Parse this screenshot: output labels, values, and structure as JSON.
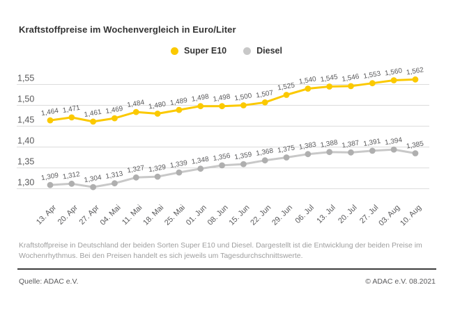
{
  "title": "Kraftstoffpreise im Wochenvergleich in Euro/Liter",
  "footnote": "Kraftstoffpreise in Deutschland der beiden Sorten Super E10 und Diesel. Dargestellt ist die Entwicklung der beiden Preise im Wochenrhythmus. Bei den Preisen handelt es sich jeweils um Tagesdurchschnittswerte.",
  "footer": {
    "source": "Quelle: ADAC e.V.",
    "copyright": "© ADAC e.V. 08.2021"
  },
  "colors": {
    "super_e10_yellow": "#FBC900",
    "diesel_line_gray": "#C8C8C8",
    "diesel_dot_gray": "#AFAFAF",
    "grid_gray": "#DCDCDC",
    "axis_text_gray": "#58585A",
    "data_label_gray": "#5A5A5C",
    "footnote_gray": "#9E9E9E",
    "divider_dark": "#3C3C3C",
    "title_dark": "#333333"
  },
  "chart_data": {
    "type": "line",
    "title": "Kraftstoffpreise im Wochenvergleich in Euro/Liter",
    "unit": "Euro/Liter",
    "grid": "horizontal",
    "legend_position": "top-center",
    "categories": [
      "13. Apr",
      "20. Apr",
      "27. Apr",
      "04. Mai",
      "11. Mai",
      "18. Mai",
      "25. Mai",
      "01. Jun",
      "08. Jun",
      "15. Jun",
      "22. Jun",
      "29. Jun",
      "06. Jul",
      "13. Jul",
      "20. Jul",
      "27. Jul",
      "03. Aug",
      "10. Aug"
    ],
    "series": [
      {
        "name": "Super E10",
        "color": "#FBC900",
        "dot_color": "#FBC900",
        "values": [
          1.464,
          1.471,
          1.461,
          1.469,
          1.484,
          1.48,
          1.489,
          1.498,
          1.498,
          1.5,
          1.507,
          1.525,
          1.54,
          1.545,
          1.546,
          1.553,
          1.56,
          1.562
        ],
        "labels": [
          "1,464",
          "1,471",
          "1,461",
          "1,469",
          "1,484",
          "1,480",
          "1,489",
          "1,498",
          "1,498",
          "1,500",
          "1,507",
          "1,525",
          "1,540",
          "1,545",
          "1,546",
          "1,553",
          "1,560",
          "1,562"
        ]
      },
      {
        "name": "Diesel",
        "color": "#C8C8C8",
        "dot_color": "#AFAFAF",
        "values": [
          1.309,
          1.312,
          1.304,
          1.313,
          1.327,
          1.329,
          1.339,
          1.348,
          1.356,
          1.359,
          1.368,
          1.375,
          1.383,
          1.388,
          1.387,
          1.391,
          1.394,
          1.385
        ],
        "labels": [
          "1,309",
          "1,312",
          "1,304",
          "1,313",
          "1,327",
          "1,329",
          "1,339",
          "1,348",
          "1,356",
          "1,359",
          "1,368",
          "1,375",
          "1,383",
          "1,388",
          "1,387",
          "1,391",
          "1,394",
          "1,385"
        ]
      }
    ],
    "y_axis": {
      "range": [
        1.28,
        1.58
      ],
      "ticks": [
        {
          "value": 1.55,
          "label": "1,55"
        },
        {
          "value": 1.5,
          "label": "1,50"
        },
        {
          "value": 1.45,
          "label": "1,45"
        },
        {
          "value": 1.4,
          "label": "1,40"
        },
        {
          "value": 1.35,
          "label": "1,35"
        },
        {
          "value": 1.3,
          "label": "1,30"
        }
      ]
    }
  }
}
